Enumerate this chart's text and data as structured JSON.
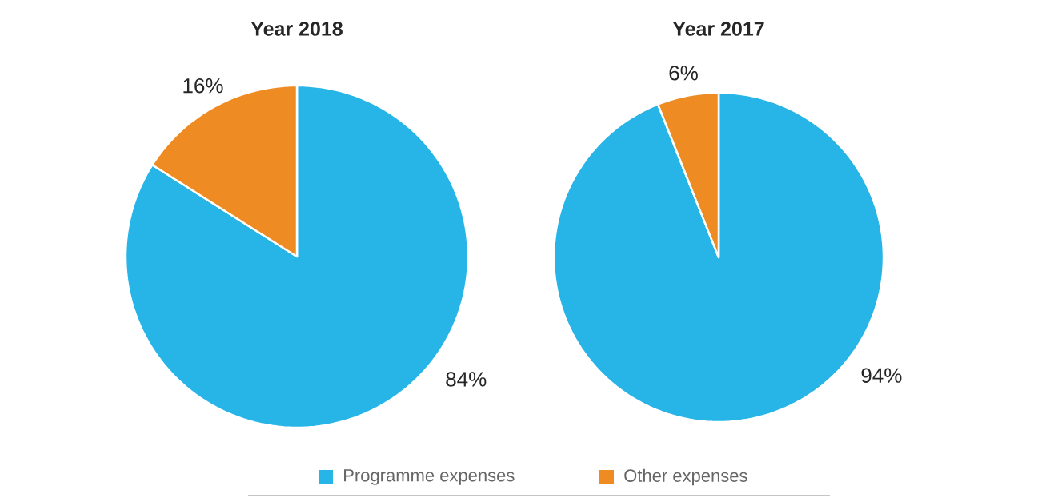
{
  "chart_data": [
    {
      "type": "pie",
      "title": "Year 2018",
      "categories": [
        "Programme expenses",
        "Other expenses"
      ],
      "values": [
        84,
        16
      ],
      "colors": [
        "#27b5e8",
        "#ee8c23"
      ],
      "value_labels": [
        "84%",
        "16%"
      ],
      "legend": "bottom"
    },
    {
      "type": "pie",
      "title": "Year 2017",
      "categories": [
        null,
        null
      ],
      "values": [
        94,
        6
      ],
      "colors": [
        "#27b5e8",
        "#ee8c23"
      ],
      "value_labels": [
        "94%",
        "6%"
      ]
    }
  ]
}
